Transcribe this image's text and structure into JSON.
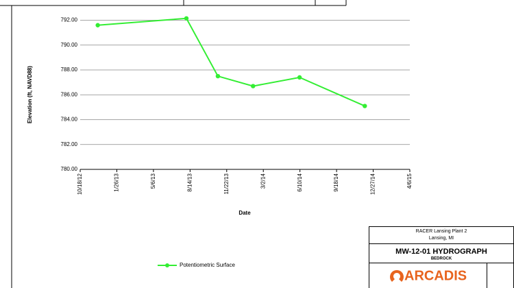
{
  "chart_data": {
    "type": "line",
    "y_label": "Elevation (ft, NAVD88)",
    "x_label": "Date",
    "x": [
      "2012-12-05",
      "2013-08-04",
      "2013-10-29",
      "2014-02-02",
      "2014-06-09",
      "2014-12-04"
    ],
    "series": [
      {
        "name": "Potentiometric Surface",
        "color": "#33ee33",
        "values": [
          791.6,
          792.15,
          787.5,
          786.7,
          787.4,
          785.1
        ]
      }
    ],
    "xlim": [
      "2012-10-18",
      "2015-04-06"
    ],
    "xticks": [
      {
        "value": "2012-10-18",
        "label": "10/18/12"
      },
      {
        "value": "2013-01-26",
        "label": "1/26/13"
      },
      {
        "value": "2013-05-06",
        "label": "5/6/13"
      },
      {
        "value": "2013-08-14",
        "label": "8/14/13"
      },
      {
        "value": "2013-11-22",
        "label": "11/22/13"
      },
      {
        "value": "2014-03-02",
        "label": "3/2/14"
      },
      {
        "value": "2014-06-10",
        "label": "6/10/14"
      },
      {
        "value": "2014-09-18",
        "label": "9/18/14"
      },
      {
        "value": "2014-12-27",
        "label": "12/27/14"
      },
      {
        "value": "2015-04-06",
        "label": "4/6/15"
      }
    ],
    "ylim": [
      780,
      792.8
    ],
    "yticks": [
      {
        "value": 780,
        "label": "780.00"
      },
      {
        "value": 782,
        "label": "782.00"
      },
      {
        "value": 784,
        "label": "784.00"
      },
      {
        "value": 786,
        "label": "786.00"
      },
      {
        "value": 788,
        "label": "788.00"
      },
      {
        "value": 790,
        "label": "790.00"
      },
      {
        "value": 792,
        "label": "792.00"
      }
    ],
    "grid": true
  },
  "title_block": {
    "project": "RACER Lansing Plant 2",
    "location": "Lansing, MI",
    "title": "MW-12-01 HYDROGRAPH",
    "subtitle": "BEDROCK",
    "logo": "ARCADIS"
  }
}
